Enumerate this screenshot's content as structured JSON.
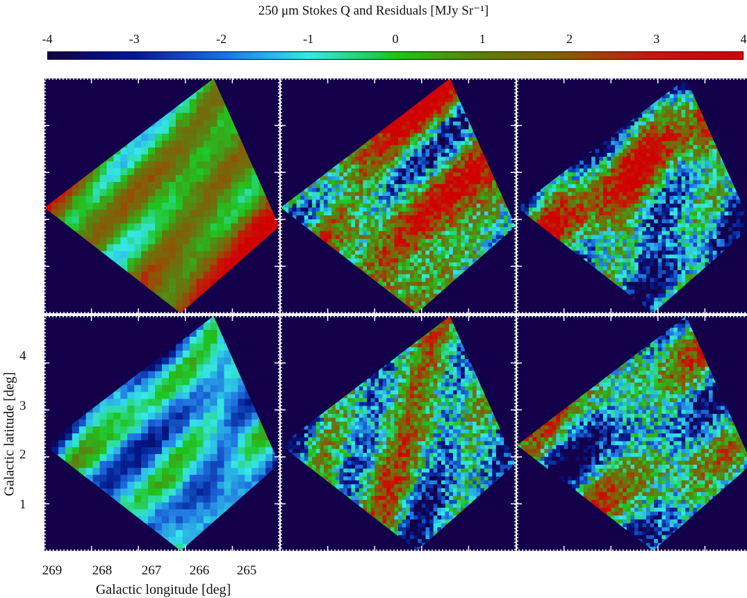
{
  "chart_data": {
    "type": "heatmap",
    "title": "250 μm Stokes Q and Residuals [MJy Sr⁻¹]",
    "colorbar": {
      "range": [
        -4,
        4
      ],
      "ticks": [
        "-4",
        "-3",
        "-2",
        "-1",
        "0",
        "1",
        "2",
        "3",
        "4"
      ],
      "colors": [
        "#14004a",
        "#001a8c",
        "#1f6ee0",
        "#35e8e8",
        "#1fc41f",
        "#5f7c11",
        "#8a5a06",
        "#c41808",
        "#d00000"
      ]
    },
    "xlabel": "Galactic longitude [deg]",
    "ylabel": "Galactic latitude [deg]",
    "xticks": [
      "269",
      "268",
      "267",
      "266",
      "265"
    ],
    "yticks": [
      "4",
      "3",
      "2",
      "1"
    ],
    "panels": [
      {
        "row": 1,
        "col": 1,
        "style": "smooth",
        "seed": 11,
        "bias": 0.25
      },
      {
        "row": 1,
        "col": 2,
        "style": "noisy",
        "seed": 23,
        "bias": 0.2
      },
      {
        "row": 1,
        "col": 3,
        "style": "noisy",
        "seed": 37,
        "bias": -0.1
      },
      {
        "row": 2,
        "col": 1,
        "style": "smooth",
        "seed": 41,
        "bias": -0.35
      },
      {
        "row": 2,
        "col": 2,
        "style": "noisy",
        "seed": 53,
        "bias": -0.15
      },
      {
        "row": 2,
        "col": 3,
        "style": "noisy",
        "seed": 67,
        "bias": -0.2
      }
    ]
  }
}
